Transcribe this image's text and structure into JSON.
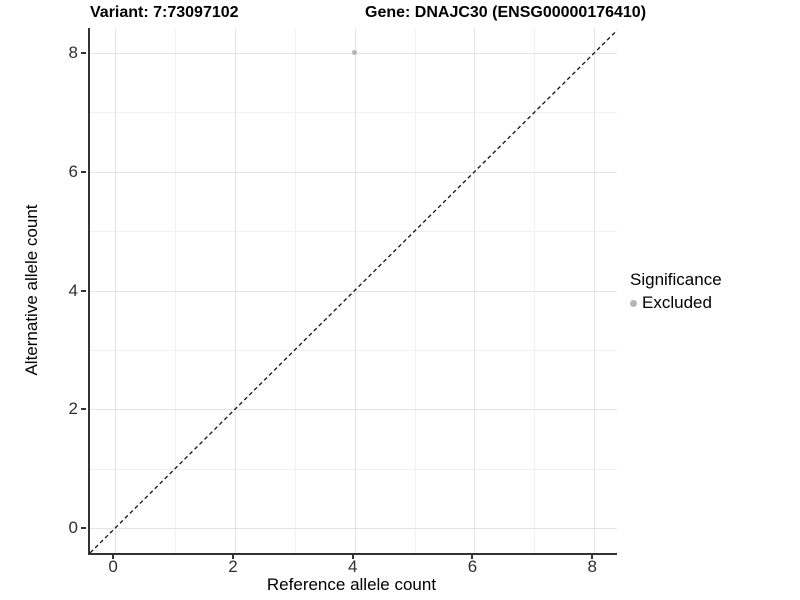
{
  "titles": {
    "variant": "Variant: 7:73097102",
    "gene": "Gene: DNAJC30 (ENSG00000176410)"
  },
  "chart_data": {
    "type": "scatter",
    "title": "Variant: 7:73097102 — Gene: DNAJC30 (ENSG00000176410)",
    "xlabel": "Reference allele count",
    "ylabel": "Alternative allele count",
    "xlim": [
      -0.42,
      8.38
    ],
    "ylim": [
      -0.42,
      8.42
    ],
    "x_ticks": [
      0,
      2,
      4,
      6,
      8
    ],
    "y_ticks": [
      0,
      2,
      4,
      6,
      8
    ],
    "x_minor_ticks": [
      1,
      3,
      5,
      7
    ],
    "y_minor_ticks": [
      1,
      3,
      5,
      7
    ],
    "grid": true,
    "series": [
      {
        "name": "Excluded",
        "color": "#b5b5b5",
        "points": [
          {
            "x": 4,
            "y": 8
          }
        ]
      }
    ],
    "reference_line": {
      "type": "identity",
      "from": {
        "x": -0.5,
        "y": -0.5
      },
      "to": {
        "x": 8.6,
        "y": 8.6
      },
      "style": "dashed",
      "color": "#111111"
    },
    "legend": {
      "title": "Significance",
      "position": "right",
      "entries": [
        {
          "label": "Excluded",
          "color": "#b5b5b5"
        }
      ]
    },
    "colors": {
      "axis_line": "#333333",
      "tick_label": "#303030",
      "grid_major": "#e4e4e4",
      "grid_minor": "#f1f1f1",
      "background": "#ffffff"
    }
  }
}
